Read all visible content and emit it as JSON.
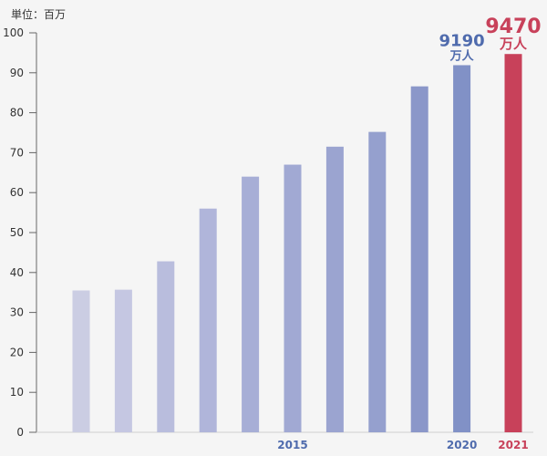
{
  "chart_data": {
    "type": "bar",
    "unit_label": "単位：百万",
    "ylim": [
      0,
      100
    ],
    "y_ticks": [
      0,
      10,
      20,
      30,
      40,
      50,
      60,
      70,
      80,
      90,
      100
    ],
    "x_tick_labels": [
      {
        "index": 5,
        "label": "2015"
      },
      {
        "index": 9,
        "label": "2020"
      },
      {
        "index": 10,
        "label": "2021"
      }
    ],
    "values": [
      35.5,
      35.7,
      42.8,
      56.0,
      64.0,
      67.0,
      71.5,
      75.2,
      86.6,
      91.9,
      94.7
    ],
    "colors": [
      "#cbcde3",
      "#c5c7e2",
      "#b9bddd",
      "#b0b5da",
      "#a7aed6",
      "#a1a9d3",
      "#9ba4d0",
      "#95a0ce",
      "#8b97c9",
      "#8191c6",
      "#c8415a"
    ],
    "annotations": [
      {
        "index": 9,
        "value_text": "9190",
        "unit_text": "万人",
        "color": "#4f6bad"
      },
      {
        "index": 10,
        "value_text": "9470",
        "unit_text": "万人",
        "color": "#c8415a"
      }
    ],
    "grid": false,
    "legend": "none"
  }
}
